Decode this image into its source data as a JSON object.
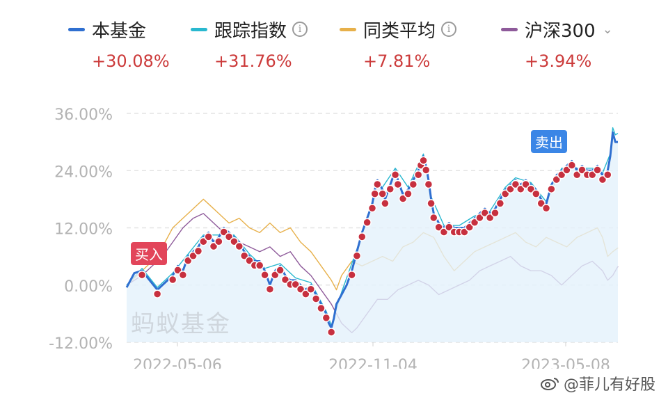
{
  "legend": [
    {
      "name": "本基金",
      "value": "+30.08%",
      "color": "#2f6fd0",
      "info_icon": false,
      "chevron": false
    },
    {
      "name": "跟踪指数",
      "value": "+31.76%",
      "color": "#29b8cf",
      "info_icon": true,
      "chevron": false
    },
    {
      "name": "同类平均",
      "value": "+7.81%",
      "color": "#e7b04a",
      "info_icon": true,
      "chevron": false
    },
    {
      "name": "沪深300",
      "value": "+3.94%",
      "color": "#8e5a9a",
      "info_icon": false,
      "chevron": true
    }
  ],
  "chart_data": {
    "type": "line",
    "y_ticks": [
      "36.00%",
      "24.00%",
      "12.00%",
      "0.00%",
      "-12.00%"
    ],
    "x_ticks": [
      "2022-05-06",
      "2022-11-04",
      "2023-05-08"
    ],
    "ylim": [
      -12,
      36
    ],
    "series": [
      {
        "name": "本基金",
        "color": "#2f6fd0",
        "area": true,
        "points": [
          [
            0,
            -0.5
          ],
          [
            3,
            2.5
          ],
          [
            6,
            3
          ],
          [
            9,
            1
          ],
          [
            12,
            -1
          ],
          [
            15,
            0.5
          ],
          [
            18,
            2
          ],
          [
            20,
            4
          ],
          [
            22,
            3
          ],
          [
            24,
            6
          ],
          [
            26,
            7
          ],
          [
            28,
            8
          ],
          [
            30,
            10
          ],
          [
            32,
            11
          ],
          [
            34,
            9
          ],
          [
            36,
            10
          ],
          [
            38,
            12
          ],
          [
            40,
            11
          ],
          [
            42,
            10
          ],
          [
            44,
            9
          ],
          [
            46,
            7
          ],
          [
            48,
            6
          ],
          [
            50,
            5
          ],
          [
            52,
            5
          ],
          [
            54,
            3
          ],
          [
            56,
            0
          ],
          [
            58,
            3
          ],
          [
            60,
            4
          ],
          [
            62,
            2
          ],
          [
            64,
            1
          ],
          [
            66,
            1
          ],
          [
            68,
            0
          ],
          [
            70,
            -1
          ],
          [
            72,
            0
          ],
          [
            74,
            -2
          ],
          [
            76,
            -4
          ],
          [
            78,
            -6
          ],
          [
            79,
            -8
          ],
          [
            80,
            -9
          ],
          [
            81,
            -7
          ],
          [
            82,
            -4
          ],
          [
            84,
            -2
          ],
          [
            86,
            0
          ],
          [
            88,
            3
          ],
          [
            90,
            7
          ],
          [
            92,
            11
          ],
          [
            94,
            14
          ],
          [
            96,
            17
          ],
          [
            97,
            20
          ],
          [
            98,
            22
          ],
          [
            100,
            20
          ],
          [
            101,
            18
          ],
          [
            103,
            21
          ],
          [
            105,
            24
          ],
          [
            106,
            22
          ],
          [
            108,
            19
          ],
          [
            110,
            20
          ],
          [
            112,
            22
          ],
          [
            114,
            24
          ],
          [
            115,
            26
          ],
          [
            116,
            27
          ],
          [
            117,
            25
          ],
          [
            118,
            22
          ],
          [
            119,
            18
          ],
          [
            120,
            15
          ],
          [
            122,
            13
          ],
          [
            124,
            12
          ],
          [
            126,
            13
          ],
          [
            128,
            12
          ],
          [
            130,
            12
          ],
          [
            132,
            12
          ],
          [
            134,
            13
          ],
          [
            136,
            14
          ],
          [
            138,
            15
          ],
          [
            140,
            16
          ],
          [
            142,
            15
          ],
          [
            144,
            16
          ],
          [
            146,
            18
          ],
          [
            148,
            20
          ],
          [
            150,
            21
          ],
          [
            152,
            22
          ],
          [
            154,
            21
          ],
          [
            156,
            22
          ],
          [
            158,
            21
          ],
          [
            160,
            20
          ],
          [
            162,
            18
          ],
          [
            164,
            17
          ],
          [
            166,
            21
          ],
          [
            168,
            23
          ],
          [
            170,
            24
          ],
          [
            172,
            25
          ],
          [
            174,
            26
          ],
          [
            176,
            24
          ],
          [
            178,
            25
          ],
          [
            180,
            24
          ],
          [
            182,
            24
          ],
          [
            184,
            25
          ],
          [
            186,
            23
          ],
          [
            188,
            24
          ],
          [
            189,
            27
          ],
          [
            190,
            32
          ],
          [
            191,
            30
          ],
          [
            192,
            30
          ]
        ]
      },
      {
        "name": "跟踪指数",
        "color": "#29b8cf",
        "area": false,
        "points": [
          [
            0,
            0
          ],
          [
            6,
            3.5
          ],
          [
            12,
            -0.5
          ],
          [
            18,
            2.5
          ],
          [
            24,
            6.5
          ],
          [
            30,
            10.5
          ],
          [
            36,
            10.5
          ],
          [
            42,
            10.5
          ],
          [
            48,
            6.5
          ],
          [
            54,
            3.5
          ],
          [
            60,
            4.5
          ],
          [
            66,
            1.5
          ],
          [
            72,
            0.5
          ],
          [
            78,
            -5.5
          ],
          [
            80,
            -8.5
          ],
          [
            84,
            -1.5
          ],
          [
            90,
            7.5
          ],
          [
            96,
            17.5
          ],
          [
            100,
            20.5
          ],
          [
            105,
            24.5
          ],
          [
            110,
            20.5
          ],
          [
            116,
            27.5
          ],
          [
            119,
            18.5
          ],
          [
            124,
            12.5
          ],
          [
            130,
            12.5
          ],
          [
            136,
            14.5
          ],
          [
            142,
            15.5
          ],
          [
            148,
            20.5
          ],
          [
            152,
            22.5
          ],
          [
            158,
            21.5
          ],
          [
            164,
            17.5
          ],
          [
            170,
            24.5
          ],
          [
            176,
            24.5
          ],
          [
            182,
            24.5
          ],
          [
            186,
            23.5
          ],
          [
            189,
            27.5
          ],
          [
            190,
            33
          ],
          [
            191,
            31.5
          ],
          [
            192,
            31.8
          ]
        ]
      },
      {
        "name": "同类平均",
        "color": "#e7b04a",
        "area": false,
        "points": [
          [
            0,
            0
          ],
          [
            6,
            3
          ],
          [
            10,
            5
          ],
          [
            14,
            8
          ],
          [
            18,
            12
          ],
          [
            22,
            14
          ],
          [
            26,
            16
          ],
          [
            30,
            18
          ],
          [
            32,
            17
          ],
          [
            36,
            15
          ],
          [
            40,
            13
          ],
          [
            44,
            14
          ],
          [
            48,
            12
          ],
          [
            52,
            11
          ],
          [
            56,
            13
          ],
          [
            60,
            11
          ],
          [
            64,
            12
          ],
          [
            68,
            9
          ],
          [
            72,
            7
          ],
          [
            76,
            4
          ],
          [
            80,
            1
          ],
          [
            82,
            -1
          ],
          [
            84,
            2
          ],
          [
            88,
            5
          ],
          [
            92,
            4
          ],
          [
            96,
            5
          ],
          [
            100,
            6
          ],
          [
            104,
            5
          ],
          [
            108,
            8
          ],
          [
            112,
            9
          ],
          [
            116,
            11
          ],
          [
            120,
            10
          ],
          [
            124,
            6
          ],
          [
            128,
            3
          ],
          [
            132,
            5
          ],
          [
            136,
            7
          ],
          [
            140,
            8
          ],
          [
            144,
            9
          ],
          [
            148,
            10
          ],
          [
            152,
            11
          ],
          [
            156,
            9
          ],
          [
            160,
            8
          ],
          [
            164,
            10
          ],
          [
            168,
            9
          ],
          [
            172,
            8
          ],
          [
            176,
            10
          ],
          [
            180,
            11
          ],
          [
            184,
            12
          ],
          [
            186,
            10
          ],
          [
            188,
            6
          ],
          [
            190,
            7
          ],
          [
            192,
            7.8
          ]
        ]
      },
      {
        "name": "沪深300",
        "color": "#8e5a9a",
        "area": false,
        "points": [
          [
            0,
            0
          ],
          [
            6,
            2
          ],
          [
            10,
            4
          ],
          [
            14,
            6
          ],
          [
            18,
            9
          ],
          [
            22,
            12
          ],
          [
            26,
            14
          ],
          [
            30,
            15
          ],
          [
            32,
            14
          ],
          [
            36,
            12
          ],
          [
            40,
            10
          ],
          [
            44,
            9
          ],
          [
            48,
            8
          ],
          [
            52,
            7
          ],
          [
            56,
            8
          ],
          [
            60,
            6
          ],
          [
            64,
            7
          ],
          [
            68,
            4
          ],
          [
            72,
            2
          ],
          [
            76,
            -1
          ],
          [
            80,
            -4
          ],
          [
            82,
            -6
          ],
          [
            84,
            -8
          ],
          [
            86,
            -9
          ],
          [
            88,
            -10
          ],
          [
            90,
            -9
          ],
          [
            94,
            -6
          ],
          [
            98,
            -3
          ],
          [
            102,
            -3
          ],
          [
            106,
            -1
          ],
          [
            110,
            0
          ],
          [
            114,
            1
          ],
          [
            118,
            0
          ],
          [
            122,
            -2
          ],
          [
            126,
            -1
          ],
          [
            130,
            0
          ],
          [
            134,
            1
          ],
          [
            138,
            3
          ],
          [
            142,
            4
          ],
          [
            146,
            5
          ],
          [
            150,
            6
          ],
          [
            154,
            4
          ],
          [
            158,
            3
          ],
          [
            162,
            3
          ],
          [
            166,
            2
          ],
          [
            170,
            0
          ],
          [
            174,
            2
          ],
          [
            178,
            4
          ],
          [
            182,
            5
          ],
          [
            186,
            3
          ],
          [
            188,
            1
          ],
          [
            190,
            2
          ],
          [
            192,
            3.9
          ]
        ]
      }
    ],
    "trade_markers": [
      {
        "label": "买入",
        "type": "buy"
      },
      {
        "label": "卖出",
        "type": "sell"
      }
    ],
    "watermark": "蚂蚁基金"
  },
  "credit": "@菲儿有好股"
}
